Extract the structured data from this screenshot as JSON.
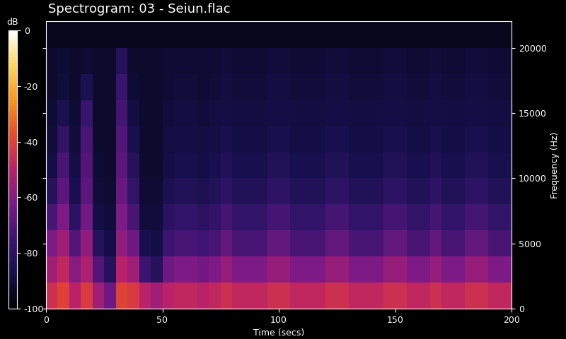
{
  "chart_data": {
    "type": "spectrogram",
    "title": "Spectrogram: 03 - Seiun.flac",
    "x_label": "Time (secs)",
    "y_label": "Frequency (Hz)",
    "xlim": [
      0,
      200
    ],
    "ylim": [
      0,
      22050
    ],
    "xticks": [
      0,
      50,
      100,
      150,
      200
    ],
    "yticks": [
      0,
      5000,
      10000,
      15000,
      20000
    ],
    "time_edges": [
      0,
      5,
      10,
      15,
      20,
      25,
      30,
      35,
      40,
      45,
      50,
      55,
      60,
      65,
      70,
      75,
      80,
      85,
      90,
      95,
      100,
      105,
      110,
      115,
      120,
      125,
      130,
      135,
      140,
      145,
      150,
      155,
      160,
      165,
      170,
      175,
      180,
      185,
      190,
      195,
      200
    ],
    "freq_edges": [
      0,
      2000,
      4000,
      6000,
      8000,
      10000,
      12000,
      14000,
      16000,
      18000,
      20000,
      22050
    ],
    "cells": [
      [
        -45,
        -55,
        -62,
        -72,
        -82,
        -88,
        -90,
        -91,
        -92,
        -92,
        -95
      ],
      [
        -40,
        -48,
        -55,
        -62,
        -68,
        -72,
        -78,
        -85,
        -90,
        -91,
        -95
      ],
      [
        -50,
        -60,
        -70,
        -80,
        -86,
        -88,
        -90,
        -91,
        -92,
        -92,
        -95
      ],
      [
        -42,
        -52,
        -58,
        -64,
        -68,
        -70,
        -72,
        -76,
        -85,
        -91,
        -95
      ],
      [
        -55,
        -70,
        -82,
        -88,
        -90,
        -91,
        -92,
        -92,
        -92,
        -92,
        -95
      ],
      [
        -65,
        -82,
        -88,
        -90,
        -91,
        -92,
        -92,
        -92,
        -92,
        -92,
        -95
      ],
      [
        -40,
        -50,
        -58,
        -62,
        -66,
        -68,
        -70,
        -73,
        -76,
        -82,
        -95
      ],
      [
        -42,
        -55,
        -65,
        -72,
        -78,
        -82,
        -86,
        -89,
        -91,
        -92,
        -95
      ],
      [
        -50,
        -75,
        -86,
        -90,
        -91,
        -92,
        -92,
        -92,
        -92,
        -92,
        -95
      ],
      [
        -55,
        -82,
        -88,
        -90,
        -91,
        -92,
        -92,
        -92,
        -92,
        -92,
        -95
      ],
      [
        -50,
        -65,
        -75,
        -80,
        -85,
        -88,
        -89,
        -90,
        -91,
        -91,
        -95
      ],
      [
        -48,
        -62,
        -72,
        -78,
        -83,
        -86,
        -88,
        -89,
        -90,
        -91,
        -95
      ],
      [
        -48,
        -62,
        -72,
        -78,
        -83,
        -86,
        -88,
        -89,
        -90,
        -91,
        -95
      ],
      [
        -50,
        -64,
        -74,
        -80,
        -85,
        -88,
        -89,
        -90,
        -91,
        -91,
        -95
      ],
      [
        -48,
        -62,
        -72,
        -78,
        -83,
        -86,
        -88,
        -89,
        -90,
        -91,
        -95
      ],
      [
        -45,
        -57,
        -67,
        -73,
        -79,
        -83,
        -86,
        -88,
        -89,
        -90,
        -95
      ],
      [
        -48,
        -62,
        -72,
        -78,
        -83,
        -86,
        -88,
        -89,
        -90,
        -91,
        -95
      ],
      [
        -48,
        -62,
        -72,
        -78,
        -83,
        -86,
        -88,
        -89,
        -90,
        -91,
        -95
      ],
      [
        -48,
        -62,
        -72,
        -78,
        -83,
        -86,
        -88,
        -89,
        -90,
        -91,
        -95
      ],
      [
        -45,
        -57,
        -67,
        -73,
        -79,
        -83,
        -86,
        -88,
        -89,
        -90,
        -95
      ],
      [
        -45,
        -57,
        -67,
        -73,
        -79,
        -83,
        -86,
        -88,
        -89,
        -90,
        -95
      ],
      [
        -48,
        -62,
        -72,
        -78,
        -83,
        -86,
        -88,
        -89,
        -90,
        -91,
        -95
      ],
      [
        -48,
        -62,
        -72,
        -78,
        -83,
        -86,
        -88,
        -89,
        -90,
        -91,
        -95
      ],
      [
        -48,
        -62,
        -72,
        -78,
        -83,
        -86,
        -88,
        -89,
        -90,
        -91,
        -95
      ],
      [
        -45,
        -57,
        -67,
        -73,
        -79,
        -83,
        -86,
        -88,
        -89,
        -90,
        -95
      ],
      [
        -45,
        -57,
        -67,
        -73,
        -79,
        -83,
        -86,
        -88,
        -89,
        -90,
        -95
      ],
      [
        -48,
        -62,
        -72,
        -78,
        -83,
        -86,
        -88,
        -89,
        -90,
        -91,
        -95
      ],
      [
        -48,
        -62,
        -72,
        -78,
        -83,
        -86,
        -88,
        -89,
        -90,
        -91,
        -95
      ],
      [
        -48,
        -62,
        -72,
        -78,
        -83,
        -86,
        -88,
        -89,
        -90,
        -91,
        -95
      ],
      [
        -45,
        -57,
        -67,
        -73,
        -79,
        -83,
        -86,
        -88,
        -89,
        -90,
        -95
      ],
      [
        -45,
        -57,
        -67,
        -73,
        -79,
        -83,
        -86,
        -88,
        -89,
        -90,
        -95
      ],
      [
        -48,
        -62,
        -72,
        -78,
        -83,
        -86,
        -88,
        -89,
        -90,
        -91,
        -95
      ],
      [
        -48,
        -62,
        -72,
        -78,
        -83,
        -86,
        -88,
        -89,
        -90,
        -91,
        -95
      ],
      [
        -45,
        -57,
        -67,
        -73,
        -79,
        -83,
        -86,
        -88,
        -89,
        -90,
        -95
      ],
      [
        -48,
        -62,
        -72,
        -78,
        -83,
        -86,
        -88,
        -89,
        -90,
        -91,
        -95
      ],
      [
        -48,
        -62,
        -72,
        -78,
        -83,
        -86,
        -88,
        -89,
        -90,
        -91,
        -95
      ],
      [
        -45,
        -57,
        -67,
        -73,
        -79,
        -83,
        -86,
        -88,
        -89,
        -90,
        -95
      ],
      [
        -45,
        -57,
        -67,
        -73,
        -79,
        -83,
        -86,
        -88,
        -89,
        -90,
        -95
      ],
      [
        -48,
        -62,
        -72,
        -78,
        -83,
        -86,
        -88,
        -89,
        -90,
        -91,
        -95
      ],
      [
        -48,
        -62,
        -72,
        -78,
        -83,
        -86,
        -88,
        -89,
        -90,
        -91,
        -95
      ]
    ],
    "colorbar": {
      "label": "dB",
      "range": [
        -100,
        0
      ],
      "ticks": [
        0,
        -20,
        -40,
        -60,
        -80,
        -100
      ]
    }
  }
}
